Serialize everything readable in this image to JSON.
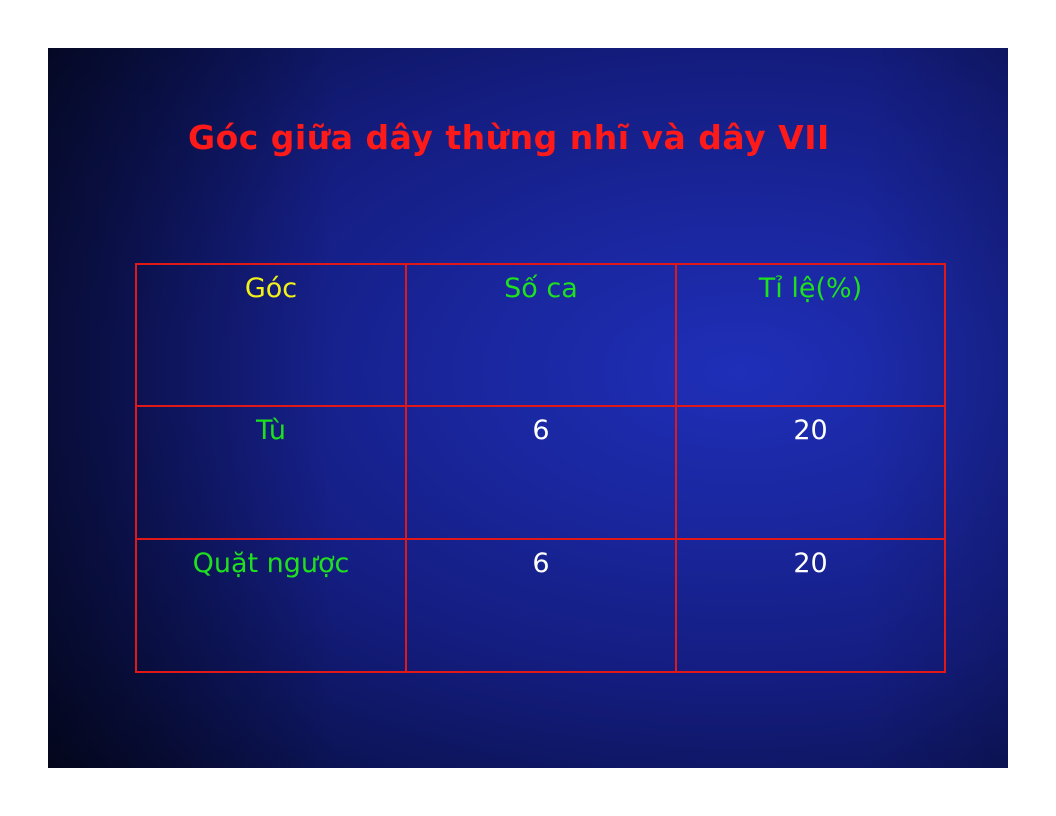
{
  "slide": {
    "title": "Góc giữa dây thừng nhĩ và dây VII"
  },
  "table": {
    "headers": [
      "Góc",
      "Số ca",
      "Tỉ lệ(%)"
    ],
    "rows": [
      [
        "Tù",
        "6",
        "20"
      ],
      [
        "Quặt ngược",
        "6",
        "20"
      ]
    ]
  },
  "colors": {
    "title": "#ff1a1a",
    "grid_lines": "#e01818",
    "header_first": "#f2f218",
    "header_other": "#1ee01e",
    "row_labels": "#1ee01e",
    "values": "#ffffff",
    "background": "#141d80"
  }
}
